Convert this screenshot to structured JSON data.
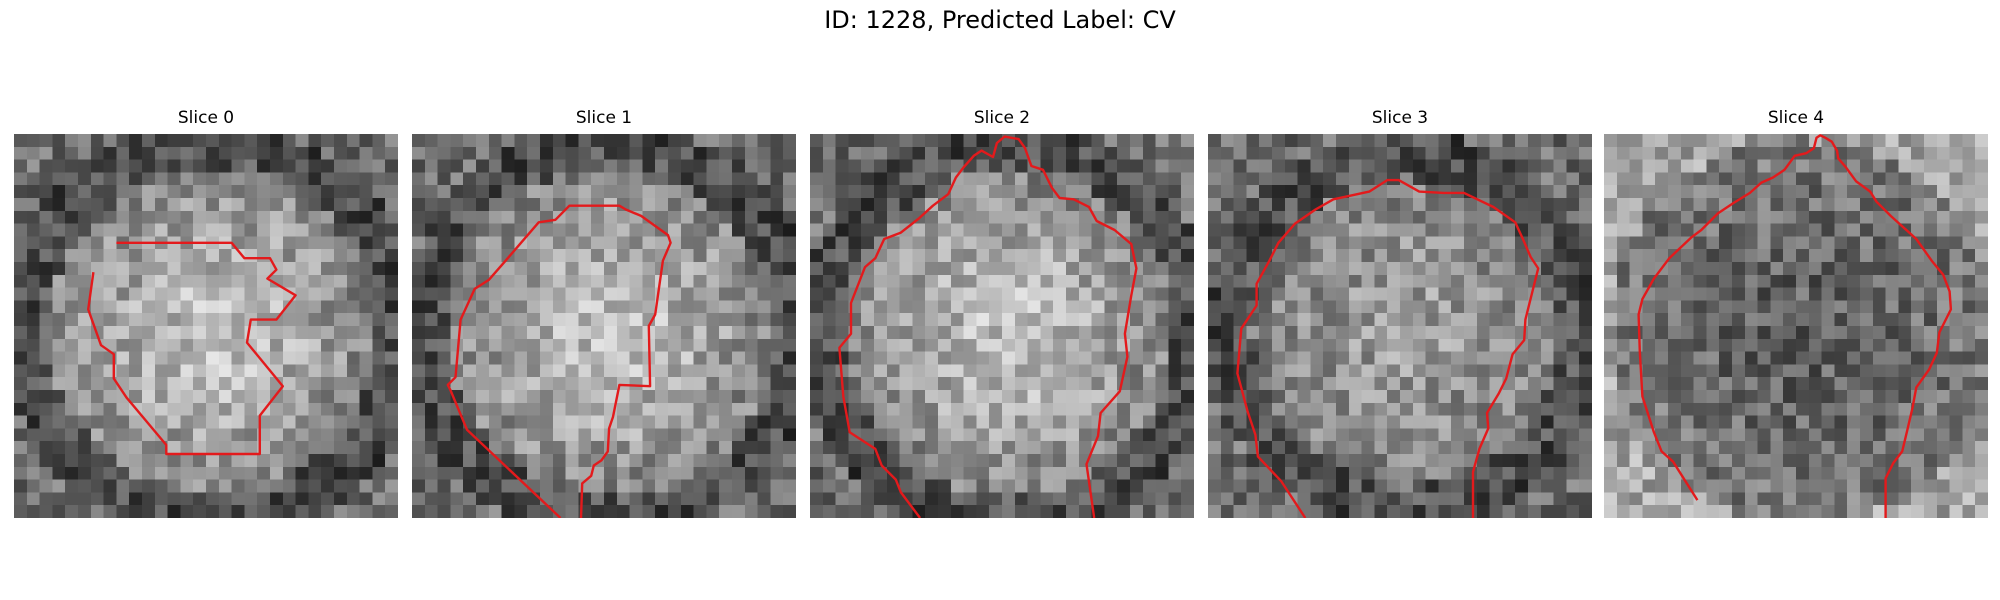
{
  "figure": {
    "title": "ID: 1228, Predicted Label: CV"
  },
  "panels": [
    {
      "title": "Slice 0",
      "seed": 11,
      "mode": "bright-center",
      "contour_color": "#e31a1c"
    },
    {
      "title": "Slice 1",
      "seed": 23,
      "mode": "bright-center",
      "contour_color": "#e31a1c"
    },
    {
      "title": "Slice 2",
      "seed": 37,
      "mode": "bright-center",
      "contour_color": "#e31a1c"
    },
    {
      "title": "Slice 3",
      "seed": 41,
      "mode": "gray-center",
      "contour_color": "#e31a1c"
    },
    {
      "title": "Slice 4",
      "seed": 53,
      "mode": "dark-center",
      "contour_color": "#e31a1c"
    }
  ],
  "colors": {
    "background": "#ffffff",
    "contour": "#e31a1c"
  }
}
